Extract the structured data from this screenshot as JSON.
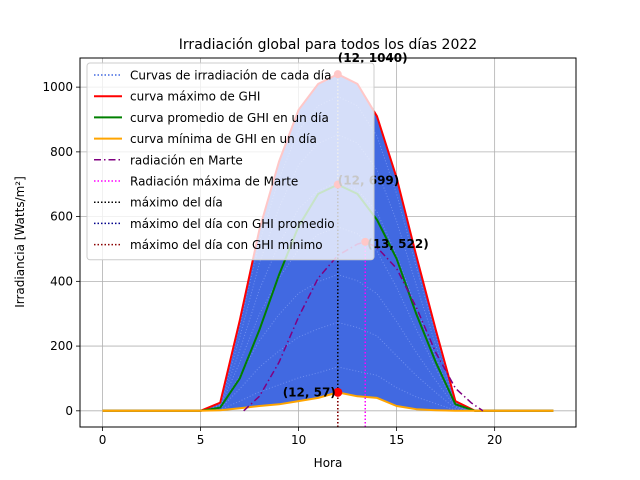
{
  "chart_data": {
    "type": "line",
    "title": "Irradiación global para todos los días 2022",
    "xlabel": "Hora",
    "ylabel": "Irradiancia [Watts/m²]",
    "xlim": [
      -1.15,
      24.15
    ],
    "ylim": [
      -50,
      1090
    ],
    "xticks": [
      0,
      5,
      10,
      15,
      20
    ],
    "yticks": [
      0,
      200,
      400,
      600,
      800,
      1000
    ],
    "grid": true,
    "legend_position": "top-left",
    "colors": {
      "daily": "#4169e1",
      "max": "#ff0000",
      "mean": "#008000",
      "min": "#ffa500",
      "mars": "#800080",
      "mars_max": "#ff00ff",
      "day_max": "#000000",
      "mean_day_max": "#00008b",
      "min_day_max": "#8b0000"
    },
    "x": [
      0,
      1,
      2,
      3,
      4,
      5,
      6,
      7,
      8,
      9,
      10,
      11,
      12,
      13,
      14,
      15,
      16,
      17,
      18,
      19,
      20,
      21,
      22,
      23
    ],
    "series": [
      {
        "name": "Curvas de irradiación de cada día",
        "style": "dotted",
        "fill_between": [
          "curva mínima de GHI en un día",
          "curva máximo de GHI"
        ]
      },
      {
        "name": "curva máximo de GHI",
        "style": "solid",
        "values": [
          0,
          0,
          0,
          0,
          0,
          0,
          25,
          280,
          560,
          770,
          930,
          1010,
          1040,
          1010,
          910,
          720,
          480,
          250,
          30,
          0,
          0,
          0,
          0,
          0
        ]
      },
      {
        "name": " curva promedio de GHI en un día",
        "style": "solid",
        "values": [
          0,
          0,
          0,
          0,
          0,
          0,
          10,
          100,
          250,
          420,
          570,
          670,
          699,
          670,
          590,
          470,
          300,
          150,
          20,
          0,
          0,
          0,
          0,
          0
        ]
      },
      {
        "name": "curva mínima de GHI en un día",
        "style": "solid",
        "values": [
          0,
          0,
          0,
          0,
          0,
          0,
          2,
          8,
          15,
          20,
          30,
          40,
          57,
          45,
          40,
          15,
          5,
          2,
          0,
          0,
          0,
          0,
          0,
          0
        ]
      },
      {
        "name": "radiación en Marte",
        "style": "dashdot",
        "points": [
          [
            7.2,
            0
          ],
          [
            8,
            45
          ],
          [
            9,
            150
          ],
          [
            10,
            290
          ],
          [
            11,
            410
          ],
          [
            12,
            480
          ],
          [
            13,
            515
          ],
          [
            13.4,
            522
          ],
          [
            14,
            505
          ],
          [
            15,
            440
          ],
          [
            16,
            320
          ],
          [
            17,
            180
          ],
          [
            18,
            70
          ],
          [
            18.8,
            25
          ],
          [
            19.4,
            0
          ]
        ]
      },
      {
        "name": "Radiación máxima de Marte",
        "style": "dotted",
        "x": 13.4,
        "y": 522
      },
      {
        "name": "máximo del día",
        "style": "dotted",
        "x": 12,
        "y": 1040
      },
      {
        "name": "máximo del día con GHI promedio",
        "style": "dotted",
        "x": 12,
        "y": 699
      },
      {
        "name": "máximo del día con GHI mínimo",
        "style": "dotted",
        "x": 12,
        "y": 57
      }
    ],
    "annotations": [
      {
        "text": "(12, 1040)",
        "x": 12,
        "y": 1040
      },
      {
        "text": "(12, 699)",
        "x": 12,
        "y": 699
      },
      {
        "text": "(13, 522)",
        "x": 13.4,
        "y": 522
      },
      {
        "text": "(12, 57)",
        "x": 12,
        "y": 57
      }
    ]
  }
}
